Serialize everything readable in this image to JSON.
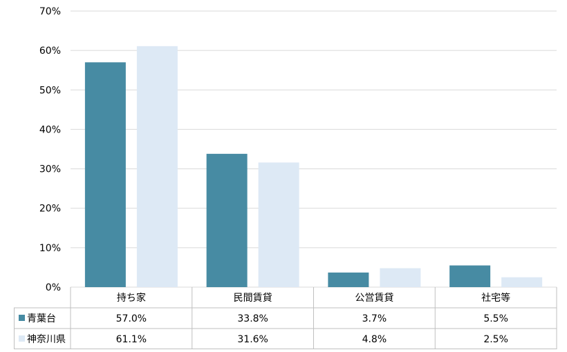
{
  "chart_data": {
    "type": "bar",
    "categories": [
      "持ち家",
      "民間賃貸",
      "公営賃貸",
      "社宅等"
    ],
    "series": [
      {
        "name": "青葉台",
        "values": [
          57.0,
          33.8,
          3.7,
          5.5
        ],
        "labels": [
          "57.0%",
          "33.8%",
          "3.7%",
          "5.5%"
        ]
      },
      {
        "name": "神奈川県",
        "values": [
          61.1,
          31.6,
          4.8,
          2.5
        ],
        "labels": [
          "61.1%",
          "31.6%",
          "4.8%",
          "2.5%"
        ]
      }
    ],
    "ylim": [
      0,
      70
    ],
    "yticks": [
      "0%",
      "10%",
      "20%",
      "30%",
      "40%",
      "50%",
      "60%",
      "70%"
    ],
    "grid": true,
    "legend": "data-table-left",
    "colors": {
      "series": [
        "#478ba3",
        "#dde9f5"
      ],
      "grid": "#d9d9d9",
      "table_border": "#bfbfbf"
    }
  }
}
